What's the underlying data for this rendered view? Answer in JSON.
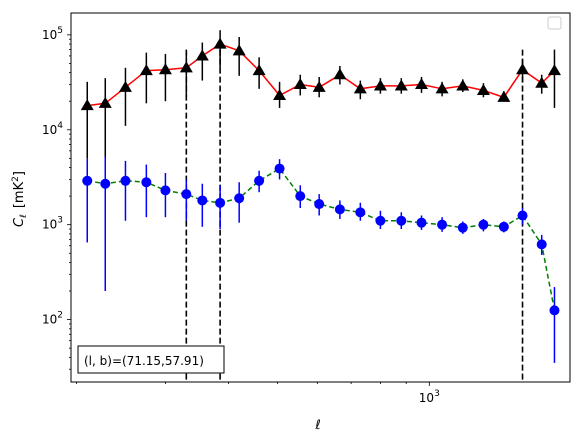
{
  "chart_data": {
    "type": "line",
    "x_scale": "log",
    "y_scale": "log",
    "xlim": [
      195,
      1900
    ],
    "ylim": [
      22,
      170000
    ],
    "xlabel": "ℓ",
    "ylabel_main": "C",
    "ylabel_sub": "ℓ",
    "ylabel_unit": "[mK",
    "ylabel_unit_sup": "2",
    "ylabel_unit_end": "]",
    "x_ticks": [
      {
        "value": 1000,
        "base": "10",
        "exp": "3"
      }
    ],
    "y_ticks": [
      {
        "value": 100,
        "base": "10",
        "exp": "2"
      },
      {
        "value": 1000,
        "base": "10",
        "exp": "3"
      },
      {
        "value": 10000,
        "base": "10",
        "exp": "4"
      },
      {
        "value": 100000,
        "base": "10",
        "exp": "5"
      }
    ],
    "annotation": "(l, b)=(71.15,57.91)",
    "vertical_lines": [
      330,
      385,
      1530
    ],
    "legend": {
      "placement": "top-right",
      "entries": []
    },
    "colors": {
      "series_upper_line": "#ff0000",
      "series_upper_marker": "#000000",
      "series_lower_line": "#008000",
      "series_lower_marker": "#0000ff",
      "series_lower_err": "#0000ff",
      "vline": "#000000"
    },
    "series": [
      {
        "marker": "triangle",
        "linestyle": "solid",
        "x": [
          210,
          228,
          250,
          275,
          300,
          330,
          355,
          385,
          420,
          460,
          505,
          555,
          605,
          665,
          730,
          800,
          880,
          965,
          1060,
          1165,
          1280,
          1405,
          1530,
          1670,
          1770
        ],
        "y": [
          18000,
          19000,
          28000,
          42000,
          43000,
          45000,
          60000,
          80000,
          68000,
          42000,
          23000,
          30000,
          28000,
          38000,
          27000,
          29000,
          29000,
          30000,
          27000,
          29000,
          26000,
          22000,
          43000,
          31000,
          42000
        ],
        "y_lo": [
          5000,
          5000,
          11000,
          19000,
          20000,
          22000,
          33000,
          45000,
          37000,
          27000,
          17000,
          23000,
          22000,
          30000,
          21000,
          24000,
          24000,
          24500,
          22500,
          25000,
          22000,
          20000,
          32000,
          24000,
          17000
        ],
        "y_hi": [
          32000,
          35000,
          45000,
          65000,
          63000,
          68000,
          83000,
          112000,
          95000,
          58000,
          32000,
          38000,
          36000,
          47000,
          33000,
          35000,
          35000,
          36000,
          32000,
          34000,
          31000,
          25500,
          55000,
          38000,
          70000
        ]
      },
      {
        "marker": "circle",
        "linestyle": "dashed",
        "x": [
          210,
          228,
          250,
          275,
          300,
          330,
          355,
          385,
          420,
          460,
          505,
          555,
          605,
          665,
          730,
          800,
          880,
          965,
          1060,
          1165,
          1280,
          1405,
          1530,
          1670,
          1770
        ],
        "y": [
          2900,
          2700,
          2900,
          2800,
          2300,
          2100,
          1800,
          1700,
          1900,
          2900,
          3900,
          2000,
          1650,
          1450,
          1350,
          1100,
          1100,
          1050,
          1000,
          930,
          1000,
          950,
          1250,
          620,
          125
        ],
        "y_lo": [
          650,
          200,
          1100,
          1200,
          1200,
          1100,
          950,
          900,
          1050,
          2200,
          3000,
          1500,
          1250,
          1150,
          1100,
          900,
          900,
          880,
          840,
          800,
          850,
          830,
          1000,
          480,
          35
        ],
        "y_hi": [
          5000,
          5200,
          4700,
          4300,
          3500,
          3000,
          2700,
          2600,
          2800,
          3700,
          4900,
          2600,
          2100,
          1800,
          1700,
          1400,
          1350,
          1250,
          1200,
          1080,
          1150,
          1080,
          1500,
          780,
          220
        ]
      }
    ]
  }
}
